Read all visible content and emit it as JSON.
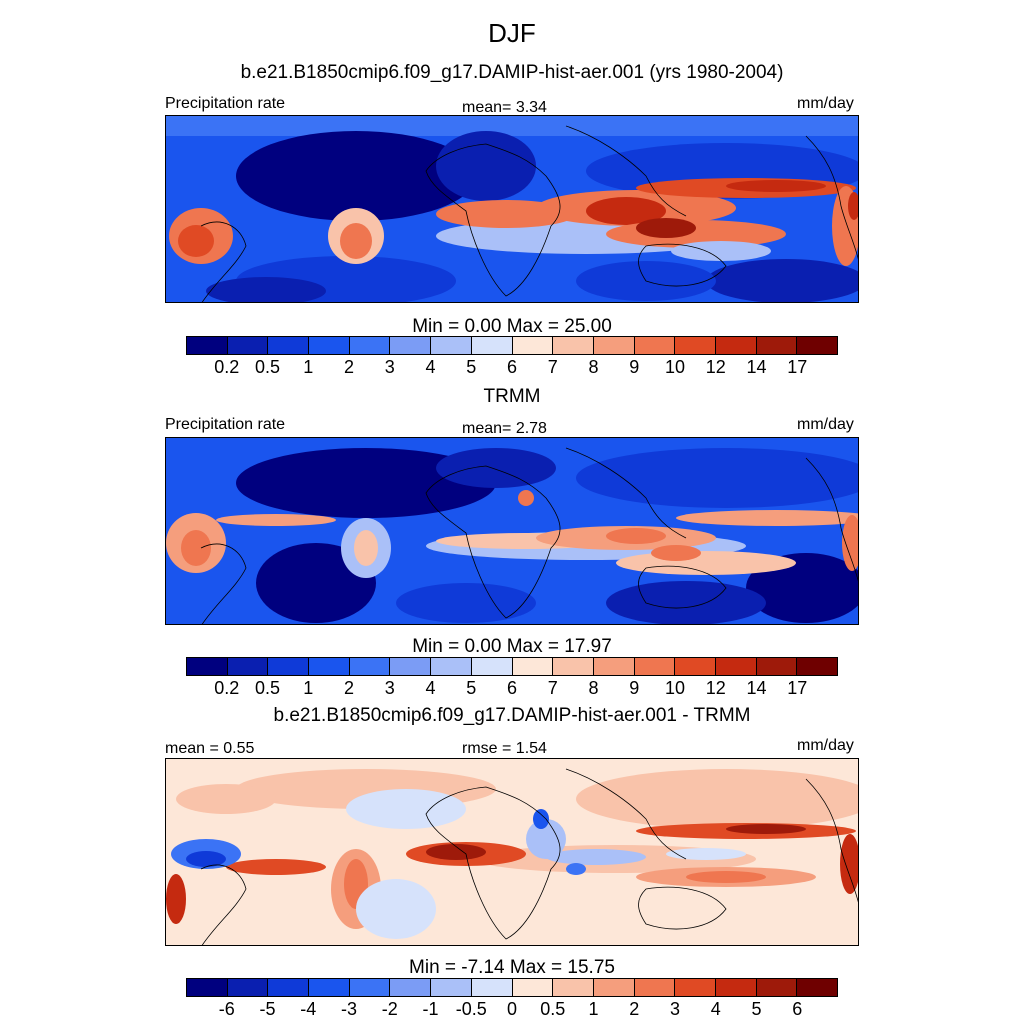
{
  "figure": {
    "title": "DJF"
  },
  "panel1": {
    "subtitle": "b.e21.B1850cmip6.f09_g17.DAMIP-hist-aer.001 (yrs 1980-2004)",
    "left_label": "Precipitation rate",
    "center_label": "mean=   3.34",
    "right_label": "mm/day",
    "minmax": "Min =   0.00 Max =  25.00",
    "colorbar_ticks": [
      "0.2",
      "0.5",
      "1",
      "2",
      "3",
      "4",
      "5",
      "6",
      "7",
      "8",
      "9",
      "10",
      "12",
      "14",
      "17"
    ]
  },
  "panel2": {
    "title": "TRMM",
    "left_label": "Precipitation rate",
    "center_label": "mean=   2.78",
    "right_label": "mm/day",
    "minmax": "Min =   0.00 Max =  17.97",
    "colorbar_ticks": [
      "0.2",
      "0.5",
      "1",
      "2",
      "3",
      "4",
      "5",
      "6",
      "7",
      "8",
      "9",
      "10",
      "12",
      "14",
      "17"
    ]
  },
  "panel3": {
    "title": "b.e21.B1850cmip6.f09_g17.DAMIP-hist-aer.001 - TRMM",
    "left_label": "mean =   0.55",
    "center_label": "rmse =   1.54",
    "right_label": "mm/day",
    "minmax": "Min =  -7.14 Max =  15.75",
    "colorbar_ticks": [
      "-6",
      "-5",
      "-4",
      "-3",
      "-2",
      "-1",
      "-0.5",
      "0",
      "0.5",
      "1",
      "2",
      "3",
      "4",
      "5",
      "6"
    ]
  },
  "colors": {
    "palette": [
      "#00007f",
      "#0a1fb0",
      "#0f3ad8",
      "#1a55ee",
      "#3b73f5",
      "#7b9cf5",
      "#aac0f8",
      "#d6e2fb",
      "#fde7d8",
      "#f9c3aa",
      "#f59e7d",
      "#ef7650",
      "#e04a24",
      "#c52a10",
      "#9e1a0a",
      "#6f0000"
    ]
  }
}
